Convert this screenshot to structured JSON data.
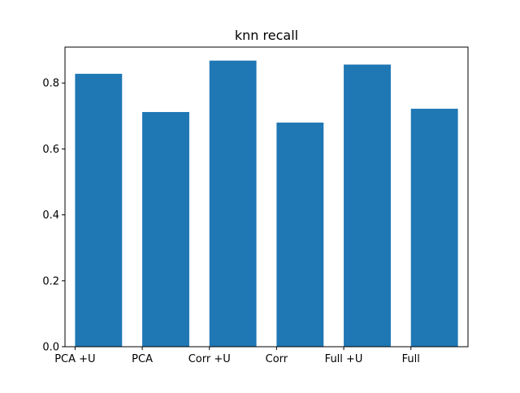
{
  "chart_data": {
    "type": "bar",
    "title": "knn recall",
    "xlabel": "",
    "ylabel": "",
    "categories": [
      "PCA +U",
      "PCA",
      "Corr +U",
      "Corr",
      "Full +U",
      "Full"
    ],
    "values": [
      0.828,
      0.712,
      0.868,
      0.68,
      0.856,
      0.722
    ],
    "ylim": [
      0,
      0.909
    ],
    "yticks": [
      0.0,
      0.2,
      0.4,
      0.6,
      0.8
    ],
    "ytick_labels": [
      "0.0",
      "0.2",
      "0.4",
      "0.6",
      "0.8"
    ],
    "bar_color": "#1f77b4",
    "grid": false,
    "legend": "none"
  }
}
